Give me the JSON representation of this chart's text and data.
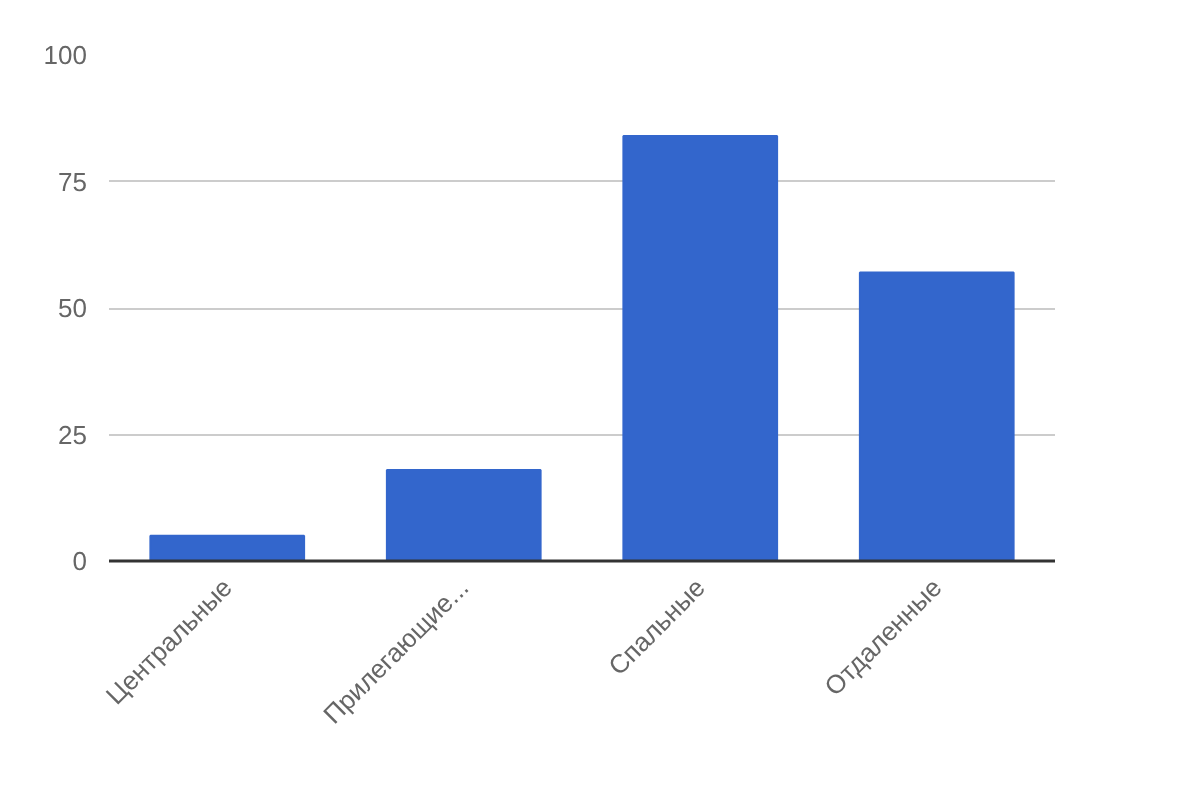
{
  "chart_data": {
    "type": "bar",
    "categories": [
      "Центральные",
      "Прилегающие...",
      "Спальные",
      "Отдаленные"
    ],
    "values": [
      5,
      18,
      84,
      57
    ],
    "color": "#3366cc",
    "ylim": [
      0,
      100
    ],
    "yticks": [
      0,
      25,
      50,
      75,
      100
    ],
    "grid": "y"
  }
}
